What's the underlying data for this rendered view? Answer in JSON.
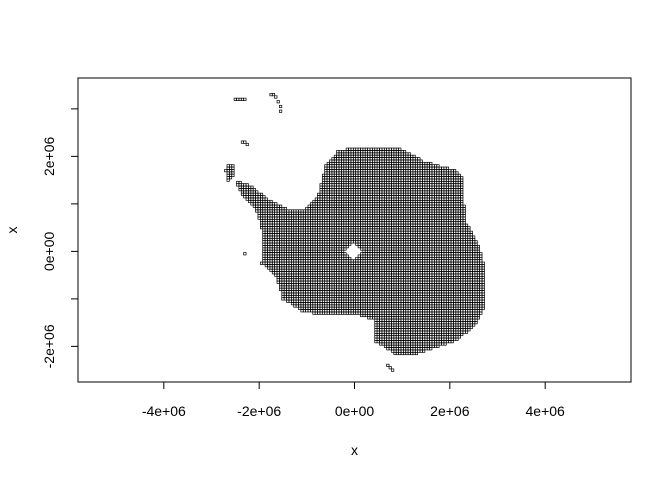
{
  "chart_data": {
    "type": "scatter",
    "title": "",
    "xlabel": "x",
    "ylabel": "x",
    "xlim": [
      -5800000,
      5800000
    ],
    "ylim": [
      -2750000,
      3650000
    ],
    "x_ticks": [
      -4000000,
      -2000000,
      0,
      2000000,
      4000000
    ],
    "x_tick_labels": [
      "-4e+06",
      "-2e+06",
      "0e+00",
      "2e+06",
      "4e+06"
    ],
    "y_ticks": [
      -2000000,
      0,
      2000000
    ],
    "y_tick_labels": [
      "-2e+06",
      "0e+00",
      "2e+06"
    ],
    "grid": false,
    "legend": "none",
    "marker": "small open square",
    "point_spacing": 50000,
    "colors": {
      "points": "#000000",
      "axes": "#000000",
      "background": "#ffffff"
    },
    "clusters": [
      {
        "name": "",
        "kind": "polygon",
        "polygon": [
          [
            1350000,
            -2150000
          ],
          [
            1800000,
            -2000000
          ],
          [
            2100000,
            -1900000
          ],
          [
            2500000,
            -1600000
          ],
          [
            2700000,
            -1250000
          ],
          [
            2750000,
            -900000
          ],
          [
            2750000,
            -500000
          ],
          [
            2700000,
            -200000
          ],
          [
            2600000,
            150000
          ],
          [
            2350000,
            600000
          ],
          [
            2300000,
            1000000
          ],
          [
            2300000,
            1500000
          ],
          [
            2150000,
            1700000
          ],
          [
            1800000,
            1800000
          ],
          [
            1450000,
            1900000
          ],
          [
            1000000,
            2150000
          ],
          [
            500000,
            2200000
          ],
          [
            0,
            2200000
          ],
          [
            -350000,
            2100000
          ],
          [
            -600000,
            1800000
          ],
          [
            -750000,
            1200000
          ],
          [
            -1000000,
            900000
          ],
          [
            -1400000,
            900000
          ],
          [
            -1800000,
            1100000
          ],
          [
            -2200000,
            1400000
          ],
          [
            -2500000,
            1500000
          ],
          [
            -2350000,
            1200000
          ],
          [
            -2050000,
            850000
          ],
          [
            -1950000,
            500000
          ],
          [
            -1900000,
            150000
          ],
          [
            -1950000,
            -250000
          ],
          [
            -1650000,
            -500000
          ],
          [
            -1500000,
            -1000000
          ],
          [
            -1100000,
            -1250000
          ],
          [
            -600000,
            -1350000
          ],
          [
            0,
            -1300000
          ],
          [
            450000,
            -1450000
          ],
          [
            450000,
            -1900000
          ],
          [
            850000,
            -2150000
          ]
        ]
      },
      {
        "name": "",
        "kind": "hole",
        "polygon": [
          [
            0,
            200000
          ],
          [
            200000,
            0
          ],
          [
            0,
            -200000
          ],
          [
            -200000,
            0
          ]
        ]
      },
      {
        "name": "",
        "kind": "polygon",
        "polygon": [
          [
            -2650000,
            1850000
          ],
          [
            -2500000,
            1850000
          ],
          [
            -2500000,
            1650000
          ],
          [
            -2650000,
            1450000
          ],
          [
            -2700000,
            1700000
          ]
        ]
      },
      {
        "name": "",
        "kind": "points",
        "points": [
          [
            -2500000,
            3200000
          ],
          [
            -2450000,
            3200000
          ],
          [
            -2400000,
            3200000
          ],
          [
            -2350000,
            3200000
          ],
          [
            -2300000,
            3200000
          ],
          [
            -1750000,
            3300000
          ],
          [
            -1700000,
            3300000
          ],
          [
            -1650000,
            3250000
          ],
          [
            -1600000,
            3150000
          ],
          [
            -1550000,
            3050000
          ],
          [
            -1550000,
            2950000
          ],
          [
            -2350000,
            2300000
          ],
          [
            -2300000,
            2300000
          ],
          [
            -2250000,
            2250000
          ],
          [
            -2300000,
            -50000
          ],
          [
            700000,
            -2400000
          ],
          [
            750000,
            -2450000
          ],
          [
            800000,
            -2500000
          ]
        ]
      }
    ]
  }
}
